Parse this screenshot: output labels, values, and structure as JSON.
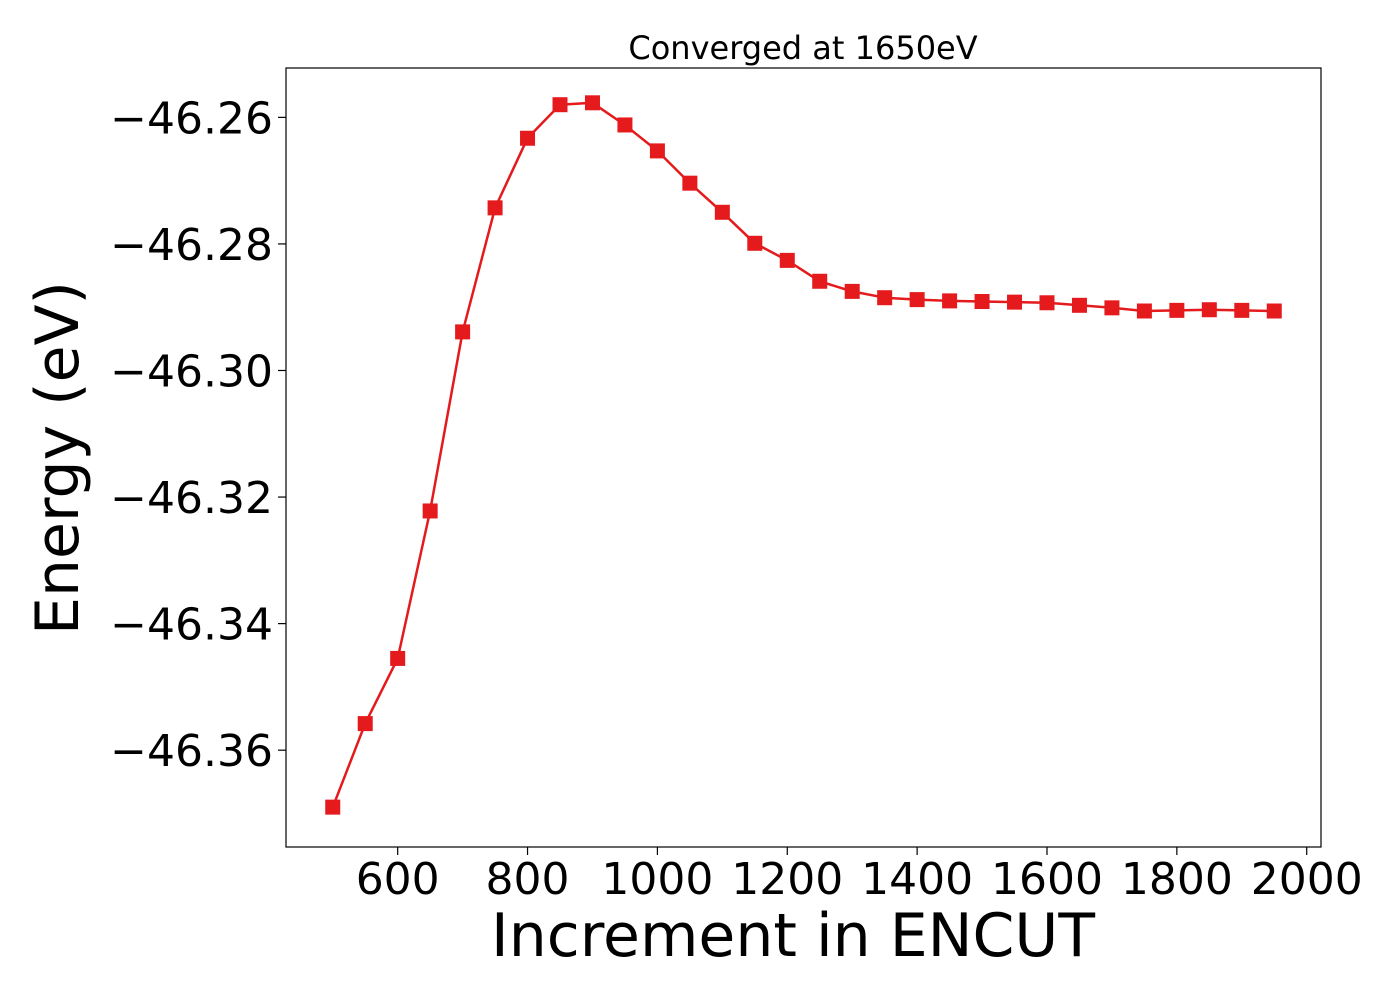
{
  "chart_data": {
    "type": "line",
    "title": "Converged at 1650eV",
    "xlabel": "Increment in ENCUT",
    "ylabel": "Energy (eV)",
    "xlim": [
      428,
      2022
    ],
    "ylim": [
      -46.3753,
      -46.2522
    ],
    "xticks": [
      600,
      800,
      1000,
      1200,
      1400,
      1600,
      1800,
      2000
    ],
    "xtick_labels": [
      "600",
      "800",
      "1000",
      "1200",
      "1400",
      "1600",
      "1800",
      "2000"
    ],
    "yticks": [
      -46.26,
      -46.28,
      -46.3,
      -46.32,
      -46.34,
      -46.36
    ],
    "ytick_labels": [
      "−46.26",
      "−46.28",
      "−46.30",
      "−46.32",
      "−46.34",
      "−46.36"
    ],
    "grid": false,
    "series": [
      {
        "color": "#e41a1c",
        "marker": "square",
        "x": [
          500,
          550,
          600,
          650,
          700,
          750,
          800,
          850,
          900,
          950,
          1000,
          1050,
          1100,
          1150,
          1200,
          1250,
          1300,
          1350,
          1400,
          1450,
          1500,
          1550,
          1600,
          1650,
          1700,
          1750,
          1800,
          1850,
          1900,
          1950
        ],
        "y": [
          -46.369,
          -46.3558,
          -46.3455,
          -46.3222,
          -46.2939,
          -46.2743,
          -46.2633,
          -46.258,
          -46.2577,
          -46.2612,
          -46.2653,
          -46.2704,
          -46.275,
          -46.2799,
          -46.2826,
          -46.2859,
          -46.2875,
          -46.2885,
          -46.2888,
          -46.289,
          -46.2891,
          -46.2892,
          -46.2893,
          -46.2897,
          -46.2901,
          -46.2906,
          -46.2905,
          -46.2904,
          -46.2905,
          -46.2906
        ]
      }
    ]
  }
}
